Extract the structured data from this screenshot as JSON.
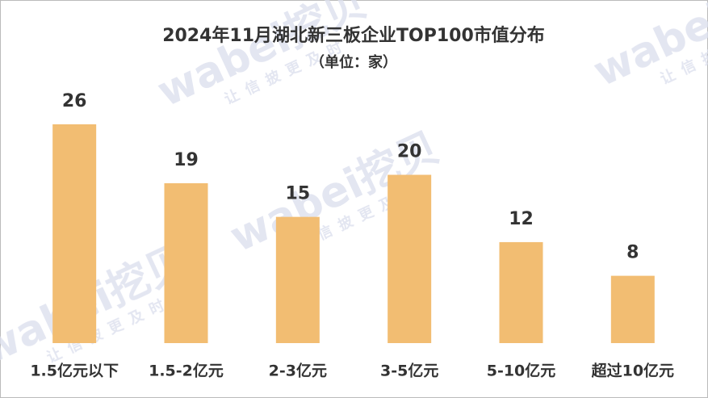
{
  "chart_data": {
    "type": "bar",
    "title": "2024年11月湖北新三板企业TOP100市值分布",
    "subtitle": "（单位：家）",
    "categories": [
      "1.5亿元以下",
      "1.5-2亿元",
      "2-3亿元",
      "3-5亿元",
      "5-10亿元",
      "超过10亿元"
    ],
    "values": [
      26,
      19,
      15,
      20,
      12,
      8
    ],
    "color": "#f2bd72"
  },
  "watermark": {
    "logo": "wabei挖贝",
    "slogan": "让信披更及时"
  }
}
